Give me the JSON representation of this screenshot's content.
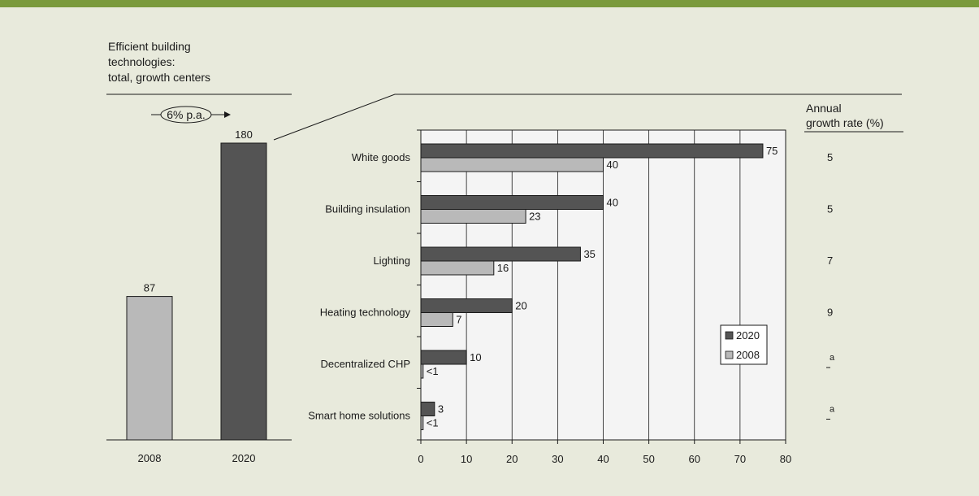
{
  "colors": {
    "background": "#e8eadc",
    "top_bar": "#7a9a3c",
    "dark_bar": "#545454",
    "light_bar": "#b9b9b9",
    "plot_bg": "#f4f4f4"
  },
  "chart_data": [
    {
      "type": "bar",
      "title_lines": [
        "Efficient building",
        "technologies:",
        "total, growth centers"
      ],
      "growth_annotation": "6% p.a.",
      "categories": [
        "2008",
        "2020"
      ],
      "values": [
        87,
        180
      ],
      "value_labels": [
        "87",
        "180"
      ],
      "ylim": [
        0,
        180
      ]
    },
    {
      "type": "bar",
      "orientation": "horizontal",
      "categories": [
        "White goods",
        "Building insulation",
        "Lighting",
        "Heating technology",
        "Decentralized CHP",
        "Smart home solutions"
      ],
      "series": [
        {
          "name": "2020",
          "values": [
            75,
            40,
            35,
            20,
            10,
            3
          ],
          "labels": [
            "75",
            "40",
            "35",
            "20",
            "10",
            "3"
          ]
        },
        {
          "name": "2008",
          "values": [
            40,
            23,
            16,
            7,
            0.5,
            0.5
          ],
          "labels": [
            "40",
            "23",
            "16",
            "7",
            "<1",
            "<1"
          ]
        }
      ],
      "xlim": [
        0,
        80
      ],
      "x_ticks": [
        0,
        10,
        20,
        30,
        40,
        50,
        60,
        70,
        80
      ],
      "grid": "vertical",
      "legend": "lower-right",
      "growth_header_lines": [
        "Annual",
        "growth rate (%)"
      ],
      "growth_rates": [
        "5",
        "5",
        "7",
        "9",
        "",
        ""
      ],
      "growth_footnote_mark": "a"
    }
  ]
}
